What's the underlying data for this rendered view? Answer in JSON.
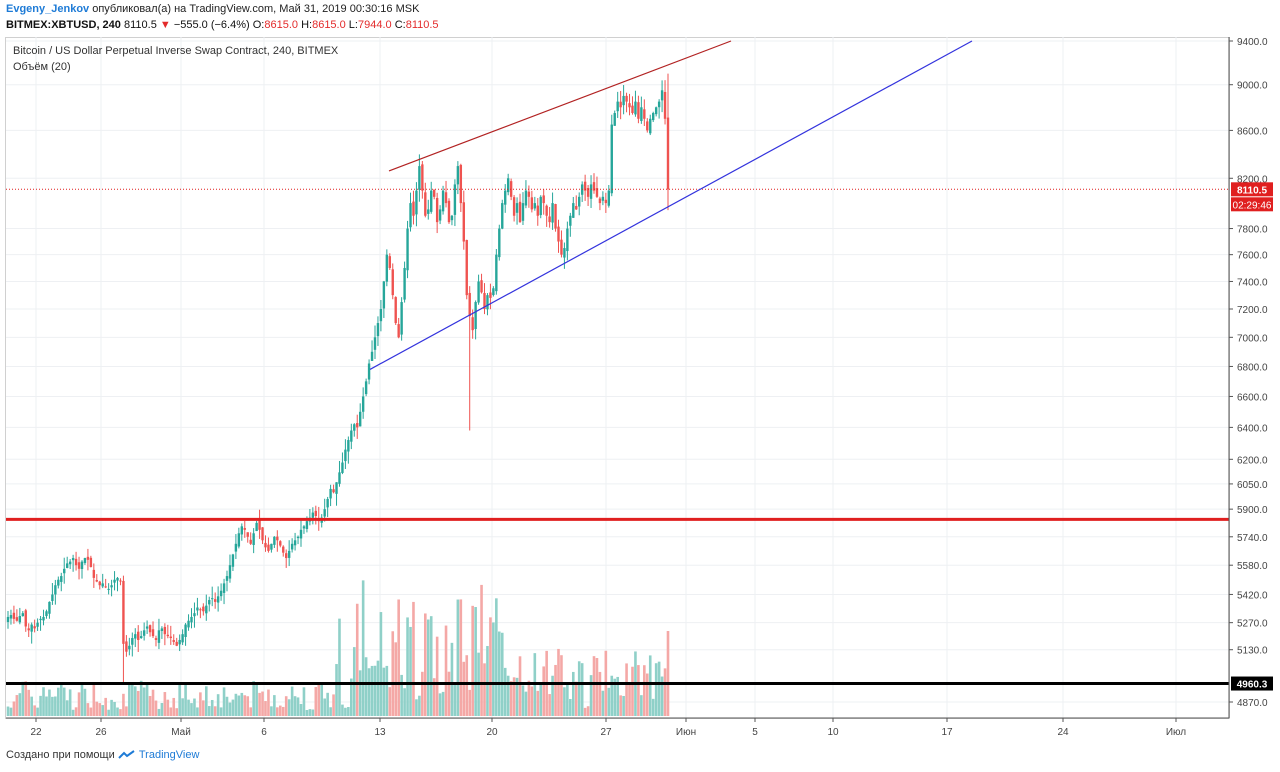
{
  "header": {
    "author": "Evgeny_Jenkov",
    "published_text": "опубликовал(а) на TradingView.com, Май 31, 2019 00:30:16 MSK",
    "symbol": "BITMEX:XBTUSD, 240",
    "last": "8110.5",
    "change_arrow": "▼",
    "change": "−555.0 (−6.4%)",
    "o_label": "O:",
    "o": "8615.0",
    "h_label": "H:",
    "h": "8615.0",
    "l_label": "L:",
    "l": "7944.0",
    "c_label": "C:",
    "c": "8110.5"
  },
  "legend": {
    "title": "Bitcoin / US Dollar Perpetual Inverse Swap Contract, 240, BITMEX",
    "volume": "Объём (20)"
  },
  "footer": {
    "created": "Создано при помощи",
    "brand": "TradingView"
  },
  "colors": {
    "up": "#26a69a",
    "down": "#ef5350",
    "vol_up": "#8fd0c8",
    "vol_down": "#f4a8a6",
    "support_line": "#3333dd",
    "resist_line": "#b22222",
    "level_red": "#e01f1f",
    "level_black": "#000000",
    "price_tag": "#e01f1f"
  },
  "chart_data": {
    "type": "candlestick",
    "title": "Bitcoin / US Dollar Perpetual Inverse Swap Contract, 240, BITMEX",
    "x_tick_labels": [
      "22",
      "26",
      "Май",
      "6",
      "13",
      "20",
      "27",
      "Июн",
      "5",
      "10",
      "17",
      "24",
      "Июл"
    ],
    "y_tick_labels": [
      "9400.0",
      "9000.0",
      "8600.0",
      "8200.0",
      "7800.0",
      "7600.0",
      "7400.0",
      "7200.0",
      "7000.0",
      "6800.0",
      "6600.0",
      "6400.0",
      "6200.0",
      "6050.0",
      "5900.0",
      "5740.0",
      "5580.0",
      "5420.0",
      "5270.0",
      "5130.0",
      "4870.0"
    ],
    "y_scale": "log",
    "ylim": [
      4800,
      9420
    ],
    "last_price": "8110.5",
    "countdown": "02:29:46",
    "horizontal_levels": [
      {
        "price": 5840,
        "color": "red"
      },
      {
        "price": 4960.3,
        "label": "4960.3",
        "color": "black"
      }
    ],
    "trend_lines": [
      {
        "name": "support",
        "from": [
          "Май 12",
          6780
        ],
        "to": [
          "Июн 18",
          9400
        ]
      },
      {
        "name": "resistance",
        "from": [
          "Май 13",
          8260
        ],
        "to": [
          "Июн 1",
          9400
        ]
      }
    ],
    "candles_4h": {
      "start": "Апр 20",
      "closes": [
        5300,
        5310,
        5290,
        5280,
        5305,
        5320,
        5250,
        5230,
        5260,
        5240,
        5270,
        5290,
        5300,
        5330,
        5380,
        5420,
        5470,
        5500,
        5520,
        5560,
        5590,
        5600,
        5620,
        5580,
        5560,
        5600,
        5620,
        5610,
        5570,
        5510,
        5490,
        5470,
        5480,
        5460,
        5450,
        5470,
        5500,
        5510,
        5490,
        5160,
        5120,
        5150,
        5190,
        5210,
        5180,
        5200,
        5230,
        5250,
        5220,
        5200,
        5180,
        5230,
        5240,
        5210,
        5200,
        5190,
        5170,
        5150,
        5180,
        5210,
        5260,
        5280,
        5300,
        5320,
        5350,
        5340,
        5330,
        5360,
        5390,
        5400,
        5380,
        5410,
        5440,
        5480,
        5520,
        5580,
        5640,
        5700,
        5760,
        5800,
        5780,
        5740,
        5700,
        5760,
        5820,
        5780,
        5720,
        5680,
        5660,
        5700,
        5740,
        5720,
        5690,
        5650,
        5620,
        5660,
        5700,
        5720,
        5740,
        5780,
        5800,
        5830,
        5850,
        5880,
        5860,
        5830,
        5850,
        5900,
        5960,
        6020,
        6000,
        6060,
        6120,
        6180,
        6260,
        6320,
        6380,
        6420,
        6400,
        6500,
        6600,
        6700,
        6820,
        6900,
        7000,
        7100,
        7200,
        7400,
        7600,
        7500,
        7300,
        7100,
        7000,
        7250,
        7500,
        7800,
        8000,
        7900,
        8100,
        8300,
        8100,
        7900,
        7950,
        8100,
        8050,
        7850,
        7950,
        8100,
        8000,
        7850,
        7900,
        8150,
        8300,
        8000,
        7700,
        7300,
        7150,
        7050,
        7250,
        7400,
        7320,
        7200,
        7300,
        7280,
        7350,
        7600,
        7800,
        8000,
        8100,
        8200,
        8050,
        7900,
        8000,
        7850,
        8000,
        8100,
        8050,
        7950,
        8000,
        7900,
        8050,
        8000,
        7900,
        7850,
        8000,
        7800,
        7700,
        7600,
        7650,
        7800,
        7900,
        8000,
        7950,
        8050,
        8150,
        8100,
        8050,
        8150,
        8100,
        8050,
        8000,
        8050,
        8000,
        8100,
        8650,
        8750,
        8850,
        8800,
        8900,
        8850,
        8800,
        8750,
        8850,
        8700,
        8800,
        8700,
        8600,
        8700,
        8750,
        8800,
        8850,
        8950,
        8700,
        8110
      ]
    }
  }
}
